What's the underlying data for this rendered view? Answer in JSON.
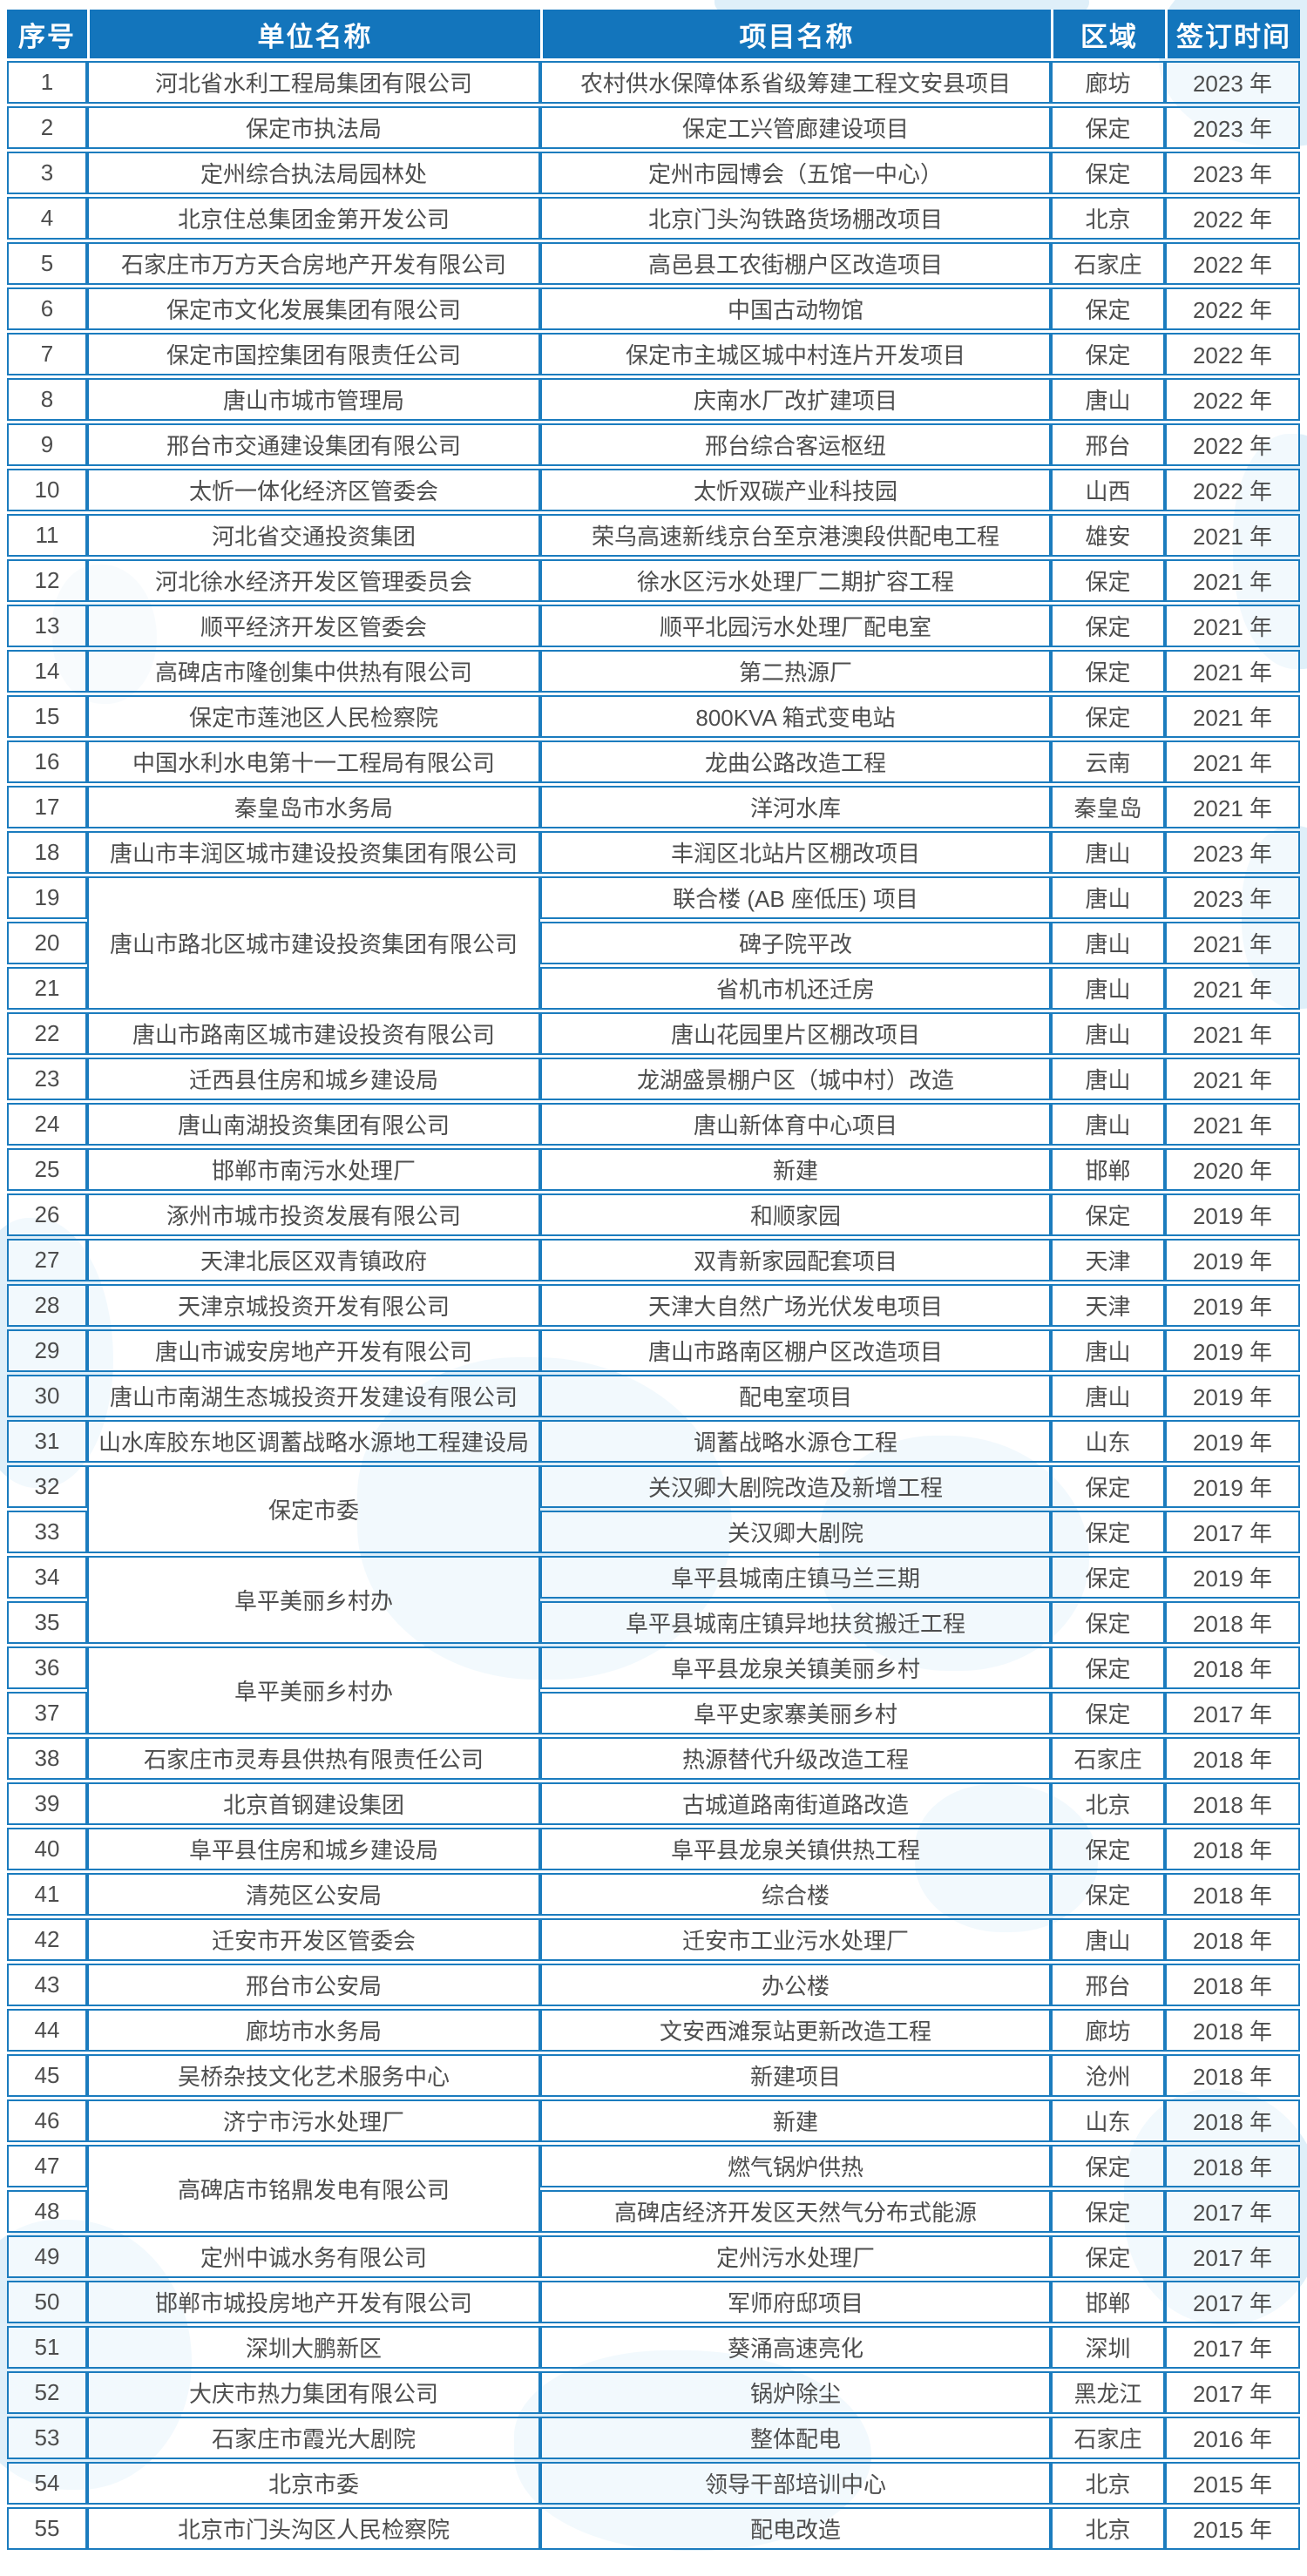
{
  "colors": {
    "header-bg": "#1375bc",
    "border": "#1b7cbe",
    "header-text": "#ffffff",
    "cell-text": "#4d4d4d",
    "watermark": "#d7ebf7"
  },
  "table": {
    "headers": [
      "序号",
      "单位名称",
      "项目名称",
      "区域",
      "签订时间"
    ],
    "rows": [
      {
        "no": "1",
        "unit": "河北省水利工程局集团有限公司",
        "project": "农村供水保障体系省级筹建工程文安县项目",
        "region": "廊坊",
        "year": "2023 年"
      },
      {
        "no": "2",
        "unit": "保定市执法局",
        "project": "保定工兴管廊建设项目",
        "region": "保定",
        "year": "2023 年"
      },
      {
        "no": "3",
        "unit": "定州综合执法局园林处",
        "project": "定州市园博会（五馆一中心）",
        "region": "保定",
        "year": "2023 年"
      },
      {
        "no": "4",
        "unit": "北京住总集团金第开发公司",
        "project": "北京门头沟铁路货场棚改项目",
        "region": "北京",
        "year": "2022 年"
      },
      {
        "no": "5",
        "unit": "石家庄市万方天合房地产开发有限公司",
        "project": "高邑县工农街棚户区改造项目",
        "region": "石家庄",
        "year": "2022 年"
      },
      {
        "no": "6",
        "unit": "保定市文化发展集团有限公司",
        "project": "中国古动物馆",
        "region": "保定",
        "year": "2022 年"
      },
      {
        "no": "7",
        "unit": "保定市国控集团有限责任公司",
        "project": "保定市主城区城中村连片开发项目",
        "region": "保定",
        "year": "2022 年"
      },
      {
        "no": "8",
        "unit": "唐山市城市管理局",
        "project": "庆南水厂改扩建项目",
        "region": "唐山",
        "year": "2022 年"
      },
      {
        "no": "9",
        "unit": "邢台市交通建设集团有限公司",
        "project": "邢台综合客运枢纽",
        "region": "邢台",
        "year": "2022 年"
      },
      {
        "no": "10",
        "unit": "太忻一体化经济区管委会",
        "project": "太忻双碳产业科技园",
        "region": "山西",
        "year": "2022 年"
      },
      {
        "no": "11",
        "unit": "河北省交通投资集团",
        "project": "荣乌高速新线京台至京港澳段供配电工程",
        "region": "雄安",
        "year": "2021 年"
      },
      {
        "no": "12",
        "unit": "河北徐水经济开发区管理委员会",
        "project": "徐水区污水处理厂二期扩容工程",
        "region": "保定",
        "year": "2021 年"
      },
      {
        "no": "13",
        "unit": "顺平经济开发区管委会",
        "project": "顺平北园污水处理厂配电室",
        "region": "保定",
        "year": "2021 年"
      },
      {
        "no": "14",
        "unit": "高碑店市隆创集中供热有限公司",
        "project": "第二热源厂",
        "region": "保定",
        "year": "2021 年"
      },
      {
        "no": "15",
        "unit": "保定市莲池区人民检察院",
        "project": "800KVA 箱式变电站",
        "region": "保定",
        "year": "2021 年"
      },
      {
        "no": "16",
        "unit": "中国水利水电第十一工程局有限公司",
        "project": "龙曲公路改造工程",
        "region": "云南",
        "year": "2021 年"
      },
      {
        "no": "17",
        "unit": "秦皇岛市水务局",
        "project": "洋河水库",
        "region": "秦皇岛",
        "year": "2021 年"
      },
      {
        "no": "18",
        "unit": "唐山市丰润区城市建设投资集团有限公司",
        "project": "丰润区北站片区棚改项目",
        "region": "唐山",
        "year": "2023 年"
      },
      {
        "no": "19",
        "unit": "唐山市路北区城市建设投资集团有限公司",
        "unit_rowspan": 3,
        "project": "联合楼 (AB 座低压) 项目",
        "region": "唐山",
        "year": "2023 年"
      },
      {
        "no": "20",
        "unit": null,
        "project": "碑子院平改",
        "region": "唐山",
        "year": "2021 年"
      },
      {
        "no": "21",
        "unit": null,
        "project": "省机市机还迁房",
        "region": "唐山",
        "year": "2021 年"
      },
      {
        "no": "22",
        "unit": "唐山市路南区城市建设投资有限公司",
        "project": "唐山花园里片区棚改项目",
        "region": "唐山",
        "year": "2021 年"
      },
      {
        "no": "23",
        "unit": "迁西县住房和城乡建设局",
        "project": "龙湖盛景棚户区（城中村）改造",
        "region": "唐山",
        "year": "2021 年"
      },
      {
        "no": "24",
        "unit": "唐山南湖投资集团有限公司",
        "project": "唐山新体育中心项目",
        "region": "唐山",
        "year": "2021 年"
      },
      {
        "no": "25",
        "unit": "邯郸市南污水处理厂",
        "project": "新建",
        "region": "邯郸",
        "year": "2020 年"
      },
      {
        "no": "26",
        "unit": "涿州市城市投资发展有限公司",
        "project": "和顺家园",
        "region": "保定",
        "year": "2019 年"
      },
      {
        "no": "27",
        "unit": "天津北辰区双青镇政府",
        "project": "双青新家园配套项目",
        "region": "天津",
        "year": "2019 年"
      },
      {
        "no": "28",
        "unit": "天津京城投资开发有限公司",
        "project": "天津大自然广场光伏发电项目",
        "region": "天津",
        "year": "2019 年"
      },
      {
        "no": "29",
        "unit": "唐山市诚安房地产开发有限公司",
        "project": "唐山市路南区棚户区改造项目",
        "region": "唐山",
        "year": "2019 年"
      },
      {
        "no": "30",
        "unit": "唐山市南湖生态城投资开发建设有限公司",
        "project": "配电室项目",
        "region": "唐山",
        "year": "2019 年"
      },
      {
        "no": "31",
        "unit": "山水库胶东地区调蓄战略水源地工程建设局",
        "project": "调蓄战略水源仓工程",
        "region": "山东",
        "year": "2019 年"
      },
      {
        "no": "32",
        "unit": "保定市委",
        "unit_rowspan": 2,
        "project": "关汉卿大剧院改造及新增工程",
        "region": "保定",
        "year": "2019 年"
      },
      {
        "no": "33",
        "unit": null,
        "project": "关汉卿大剧院",
        "region": "保定",
        "year": "2017 年"
      },
      {
        "no": "34",
        "unit": "阜平美丽乡村办",
        "unit_rowspan": 2,
        "project": "阜平县城南庄镇马兰三期",
        "region": "保定",
        "year": "2019 年"
      },
      {
        "no": "35",
        "unit": null,
        "project": "阜平县城南庄镇异地扶贫搬迁工程",
        "region": "保定",
        "year": "2018 年"
      },
      {
        "no": "36",
        "unit": "阜平美丽乡村办",
        "unit_rowspan": 2,
        "project": "阜平县龙泉关镇美丽乡村",
        "region": "保定",
        "year": "2018 年"
      },
      {
        "no": "37",
        "unit": null,
        "project": "阜平史家寨美丽乡村",
        "region": "保定",
        "year": "2017 年"
      },
      {
        "no": "38",
        "unit": "石家庄市灵寿县供热有限责任公司",
        "project": "热源替代升级改造工程",
        "region": "石家庄",
        "year": "2018 年"
      },
      {
        "no": "39",
        "unit": "北京首钢建设集团",
        "project": "古城道路南街道路改造",
        "region": "北京",
        "year": "2018 年"
      },
      {
        "no": "40",
        "unit": "阜平县住房和城乡建设局",
        "project": "阜平县龙泉关镇供热工程",
        "region": "保定",
        "year": "2018 年"
      },
      {
        "no": "41",
        "unit": "清苑区公安局",
        "project": "综合楼",
        "region": "保定",
        "year": "2018 年"
      },
      {
        "no": "42",
        "unit": "迁安市开发区管委会",
        "project": "迁安市工业污水处理厂",
        "region": "唐山",
        "year": "2018 年"
      },
      {
        "no": "43",
        "unit": "邢台市公安局",
        "project": "办公楼",
        "region": "邢台",
        "year": "2018 年"
      },
      {
        "no": "44",
        "unit": "廊坊市水务局",
        "project": "文安西滩泵站更新改造工程",
        "region": "廊坊",
        "year": "2018 年"
      },
      {
        "no": "45",
        "unit": "吴桥杂技文化艺术服务中心",
        "project": "新建项目",
        "region": "沧州",
        "year": "2018 年"
      },
      {
        "no": "46",
        "unit": "济宁市污水处理厂",
        "project": "新建",
        "region": "山东",
        "year": "2018 年"
      },
      {
        "no": "47",
        "unit": "高碑店市铭鼎发电有限公司",
        "unit_rowspan": 2,
        "project": "燃气锅炉供热",
        "region": "保定",
        "year": "2018 年"
      },
      {
        "no": "48",
        "unit": null,
        "project": "高碑店经济开发区天然气分布式能源",
        "region": "保定",
        "year": "2017 年"
      },
      {
        "no": "49",
        "unit": "定州中诚水务有限公司",
        "project": "定州污水处理厂",
        "region": "保定",
        "year": "2017 年"
      },
      {
        "no": "50",
        "unit": "邯郸市城投房地产开发有限公司",
        "project": "军师府邸项目",
        "region": "邯郸",
        "year": "2017 年"
      },
      {
        "no": "51",
        "unit": "深圳大鹏新区",
        "project": "葵涌高速亮化",
        "region": "深圳",
        "year": "2017 年"
      },
      {
        "no": "52",
        "unit": "大庆市热力集团有限公司",
        "project": "锅炉除尘",
        "region": "黑龙江",
        "year": "2017 年"
      },
      {
        "no": "53",
        "unit": "石家庄市霞光大剧院",
        "project": "整体配电",
        "region": "石家庄",
        "year": "2016 年"
      },
      {
        "no": "54",
        "unit": "北京市委",
        "project": "领导干部培训中心",
        "region": "北京",
        "year": "2015 年"
      },
      {
        "no": "55",
        "unit": "北京市门头沟区人民检察院",
        "project": "配电改造",
        "region": "北京",
        "year": "2015 年"
      }
    ]
  }
}
